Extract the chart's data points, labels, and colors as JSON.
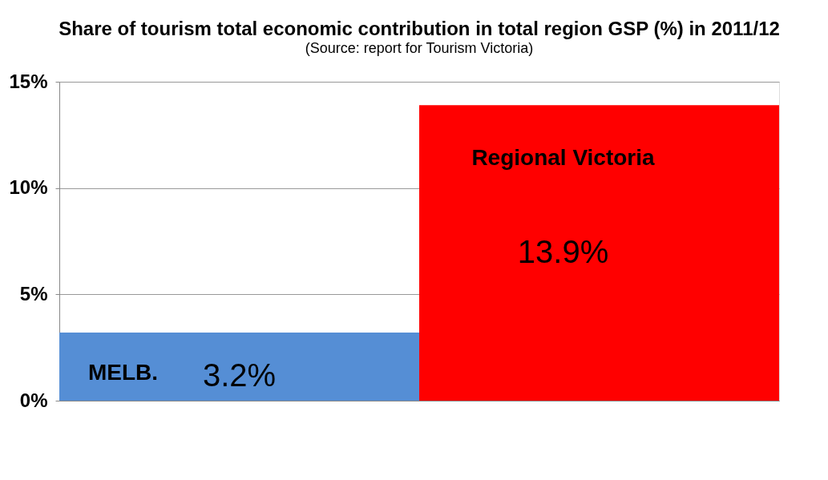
{
  "chart_data": {
    "type": "bar",
    "title": "Share of tourism total economic contribution in total region GSP (%) in 2011/12",
    "subtitle": "(Source: report for Tourism Victoria)",
    "categories": [
      "MELB.",
      "Regional Victoria"
    ],
    "values": [
      3.2,
      13.9
    ],
    "colors": [
      "#558ed5",
      "#ff0000"
    ],
    "value_labels": [
      "3.2%",
      "13.9%"
    ],
    "ylim": [
      0,
      15
    ],
    "yticks": [
      {
        "value": 0,
        "label": "0%"
      },
      {
        "value": 5,
        "label": "5%"
      },
      {
        "value": 10,
        "label": "10%"
      },
      {
        "value": 15,
        "label": "15%"
      }
    ],
    "grid": "y",
    "tick_labels": "y"
  }
}
